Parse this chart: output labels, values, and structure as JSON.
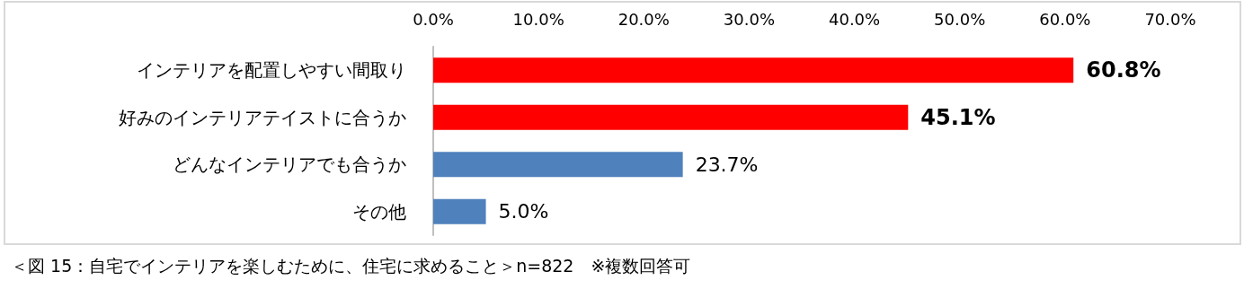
{
  "chart_data": {
    "type": "bar",
    "orientation": "horizontal",
    "categories": [
      "インテリアを配置しやすい間取り",
      "好みのインテリアテイストに合うか",
      "どんなインテリアでも合うか",
      "その他"
    ],
    "values": [
      60.8,
      45.1,
      23.7,
      5.0
    ],
    "colors": [
      "#ff0000",
      "#ff0000",
      "#4f81bd",
      "#4f81bd"
    ],
    "value_labels": [
      "60.8%",
      "45.1%",
      "23.7%",
      "5.0%"
    ],
    "xlim": [
      0,
      70
    ],
    "xticks": [
      {
        "value": 0,
        "label": "0.0%"
      },
      {
        "value": 10,
        "label": "10.0%"
      },
      {
        "value": 20,
        "label": "20.0%"
      },
      {
        "value": 30,
        "label": "30.0%"
      },
      {
        "value": 40,
        "label": "40.0%"
      },
      {
        "value": 50,
        "label": "50.0%"
      },
      {
        "value": 60,
        "label": "60.0%"
      },
      {
        "value": 70,
        "label": "70.0%"
      }
    ],
    "grid": false,
    "annotations": [
      "＜図 15：自宅でインテリアを楽しむために、住宅に求めること＞n=822　※複数回答可"
    ]
  }
}
